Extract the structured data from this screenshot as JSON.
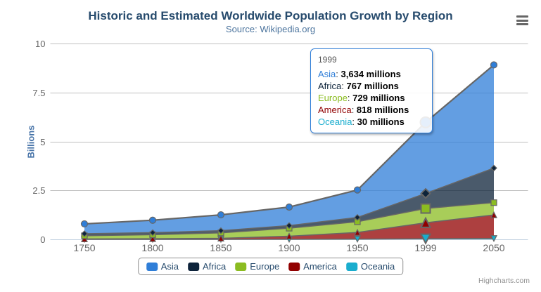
{
  "header": {
    "title": "Historic and Estimated Worldwide Population Growth by Region",
    "subtitle": "Source: Wikipedia.org"
  },
  "icons": {
    "menu": "hamburger-icon"
  },
  "chart_data": {
    "type": "area",
    "stacking": "normal",
    "title": "Historic and Estimated Worldwide Population Growth by Region",
    "subtitle": "Source: Wikipedia.org",
    "categories": [
      "1750",
      "1800",
      "1850",
      "1900",
      "1950",
      "1999",
      "2050"
    ],
    "xlabel": "",
    "ylabel": "Billions",
    "ylim": [
      0,
      10
    ],
    "yticks": [
      0,
      2.5,
      5,
      7.5,
      10
    ],
    "unit": "millions",
    "grid": true,
    "legend_position": "bottom",
    "hover_index": 5,
    "stack_order_bottom_to_top": [
      "Oceania",
      "America",
      "Europe",
      "Africa",
      "Asia"
    ],
    "series": [
      {
        "name": "Asia",
        "color": "#2f7ed8",
        "marker": "circle",
        "values": [
          502,
          635,
          809,
          947,
          1402,
          3634,
          5268
        ]
      },
      {
        "name": "Africa",
        "color": "#0d233a",
        "marker": "diamond",
        "values": [
          106,
          107,
          111,
          133,
          221,
          767,
          1766
        ]
      },
      {
        "name": "Europe",
        "color": "#8bbc21",
        "marker": "square",
        "values": [
          163,
          203,
          276,
          408,
          547,
          729,
          628
        ]
      },
      {
        "name": "America",
        "color": "#910000",
        "marker": "triangle",
        "values": [
          18,
          31,
          54,
          156,
          339,
          818,
          1201
        ]
      },
      {
        "name": "Oceania",
        "color": "#1aadce",
        "marker": "triangle-down",
        "values": [
          2,
          2,
          2,
          6,
          13,
          30,
          46
        ]
      }
    ],
    "fill_opacity": 0.75,
    "line_color": "#666666",
    "colors": {
      "grid": "#c0c0c0",
      "x_axis_line": "#c0d0e0",
      "axis_label": "#666666",
      "y_axis_title": "#4572a7",
      "title": "#274b6d",
      "subtitle": "#4d759e"
    }
  },
  "tooltip": {
    "header": "1999",
    "rows": [
      {
        "name": "Asia",
        "value": "3,634 millions"
      },
      {
        "name": "Africa",
        "value": "767 millions"
      },
      {
        "name": "Europe",
        "value": "729 millions"
      },
      {
        "name": "America",
        "value": "818 millions"
      },
      {
        "name": "Oceania",
        "value": "30 millions"
      }
    ]
  },
  "legend": {
    "items": [
      "Asia",
      "Africa",
      "Europe",
      "America",
      "Oceania"
    ]
  },
  "credits": {
    "text": "Highcharts.com"
  }
}
